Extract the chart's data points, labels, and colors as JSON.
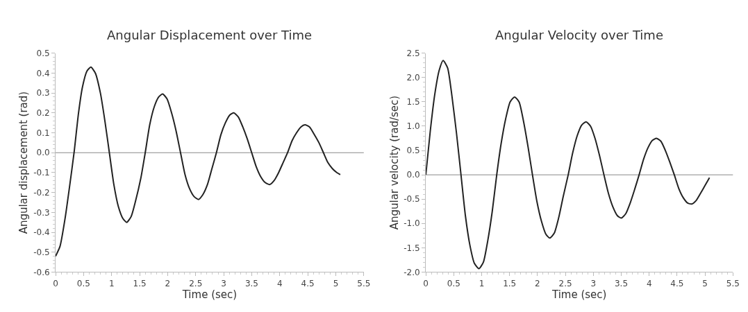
{
  "chart_data": [
    {
      "type": "line",
      "title": "Angular Displacement over Time",
      "xlabel": "Time (sec)",
      "ylabel": "Angular displacement (rad)",
      "x": [
        0,
        0.08,
        0.17,
        0.25,
        0.33,
        0.41,
        0.48,
        0.56,
        0.63,
        0.71,
        0.8,
        0.88,
        0.96,
        1.04,
        1.12,
        1.2,
        1.27,
        1.35,
        1.43,
        1.52,
        1.6,
        1.68,
        1.76,
        1.84,
        1.91,
        1.99,
        2.07,
        2.15,
        2.23,
        2.31,
        2.39,
        2.47,
        2.55,
        2.63,
        2.71,
        2.79,
        2.87,
        2.95,
        3.03,
        3.11,
        3.18,
        3.26,
        3.34,
        3.42,
        3.5,
        3.58,
        3.66,
        3.74,
        3.82,
        3.9,
        3.98,
        4.06,
        4.14,
        4.22,
        4.3,
        4.38,
        4.45,
        4.53,
        4.62,
        4.7,
        4.78,
        4.86,
        4.94,
        5.02,
        5.08
      ],
      "series": [
        {
          "color": "#222222",
          "values": [
            -0.52,
            -0.47,
            -0.33,
            -0.17,
            0,
            0.2,
            0.33,
            0.41,
            0.43,
            0.4,
            0.3,
            0.16,
            0,
            -0.16,
            -0.27,
            -0.33,
            -0.35,
            -0.32,
            -0.24,
            -0.13,
            0,
            0.14,
            0.23,
            0.28,
            0.295,
            0.27,
            0.2,
            0.11,
            0,
            -0.11,
            -0.18,
            -0.22,
            -0.235,
            -0.21,
            -0.16,
            -0.08,
            0,
            0.09,
            0.15,
            0.19,
            0.2,
            0.18,
            0.13,
            0.07,
            0,
            -0.07,
            -0.12,
            -0.15,
            -0.16,
            -0.14,
            -0.1,
            -0.05,
            0,
            0.06,
            0.1,
            0.13,
            0.14,
            0.13,
            0.09,
            0.05,
            0,
            -0.05,
            -0.08,
            -0.1,
            -0.11
          ]
        }
      ],
      "xlim": [
        0,
        5.5
      ],
      "xticks": [
        0,
        0.5,
        1,
        1.5,
        2,
        2.5,
        3,
        3.5,
        4,
        4.5,
        5,
        5.5
      ],
      "ylim": [
        -0.6,
        0.5
      ],
      "yticks": [
        -0.6,
        -0.5,
        -0.4,
        -0.3,
        -0.2,
        -0.1,
        {
          "value": 0,
          "label": "0.0"
        },
        0.1,
        0.2,
        0.3,
        0.4,
        0.5
      ],
      "ref_lines": [
        {
          "axis": "y",
          "value": 0,
          "color": "#888888"
        }
      ],
      "grid": false
    },
    {
      "type": "line",
      "title": "Angular Velocity over Time",
      "xlabel": "Time (sec)",
      "ylabel": "Angular velocity (rad/sec)",
      "x": [
        0,
        0.08,
        0.16,
        0.24,
        0.31,
        0.39,
        0.47,
        0.55,
        0.63,
        0.71,
        0.79,
        0.87,
        0.95,
        1.03,
        1.11,
        1.19,
        1.27,
        1.35,
        1.43,
        1.51,
        1.59,
        1.67,
        1.75,
        1.83,
        1.91,
        1.99,
        2.07,
        2.15,
        2.22,
        2.3,
        2.38,
        2.46,
        2.55,
        2.63,
        2.71,
        2.79,
        2.87,
        2.95,
        3.03,
        3.11,
        3.19,
        3.27,
        3.35,
        3.43,
        3.5,
        3.58,
        3.66,
        3.74,
        3.82,
        3.9,
        3.98,
        4.06,
        4.13,
        4.21,
        4.29,
        4.37,
        4.45,
        4.53,
        4.61,
        4.69,
        4.76,
        4.84,
        4.92,
        5.0,
        5.08
      ],
      "series": [
        {
          "color": "#222222",
          "values": [
            0,
            0.9,
            1.65,
            2.15,
            2.35,
            2.2,
            1.6,
            0.85,
            0,
            -0.85,
            -1.45,
            -1.82,
            -1.93,
            -1.8,
            -1.35,
            -0.75,
            0,
            0.65,
            1.15,
            1.5,
            1.6,
            1.5,
            1.1,
            0.58,
            0,
            -0.55,
            -0.95,
            -1.22,
            -1.3,
            -1.2,
            -0.88,
            -0.45,
            0,
            0.45,
            0.8,
            1.02,
            1.09,
            1.0,
            0.75,
            0.4,
            0,
            -0.38,
            -0.66,
            -0.84,
            -0.89,
            -0.8,
            -0.58,
            -0.3,
            0,
            0.32,
            0.56,
            0.71,
            0.75,
            0.69,
            0.5,
            0.26,
            0,
            -0.28,
            -0.47,
            -0.58,
            -0.6,
            -0.53,
            -0.38,
            -0.22,
            -0.06
          ]
        }
      ],
      "xlim": [
        0,
        5.5
      ],
      "xticks": [
        0,
        0.5,
        1,
        1.5,
        2,
        2.5,
        3,
        3.5,
        4,
        4.5,
        5,
        5.5
      ],
      "ylim": [
        -2.0,
        2.5
      ],
      "yticks": [
        {
          "value": -2,
          "label": "-2.0"
        },
        -1.5,
        {
          "value": -1,
          "label": "-1.0"
        },
        -0.5,
        {
          "value": 0,
          "label": "0.0"
        },
        0.5,
        {
          "value": 1,
          "label": "1.0"
        },
        1.5,
        {
          "value": 2,
          "label": "2.0"
        },
        2.5
      ],
      "ref_lines": [
        {
          "axis": "y",
          "value": 0,
          "color": "#888888"
        }
      ],
      "grid": false
    }
  ]
}
